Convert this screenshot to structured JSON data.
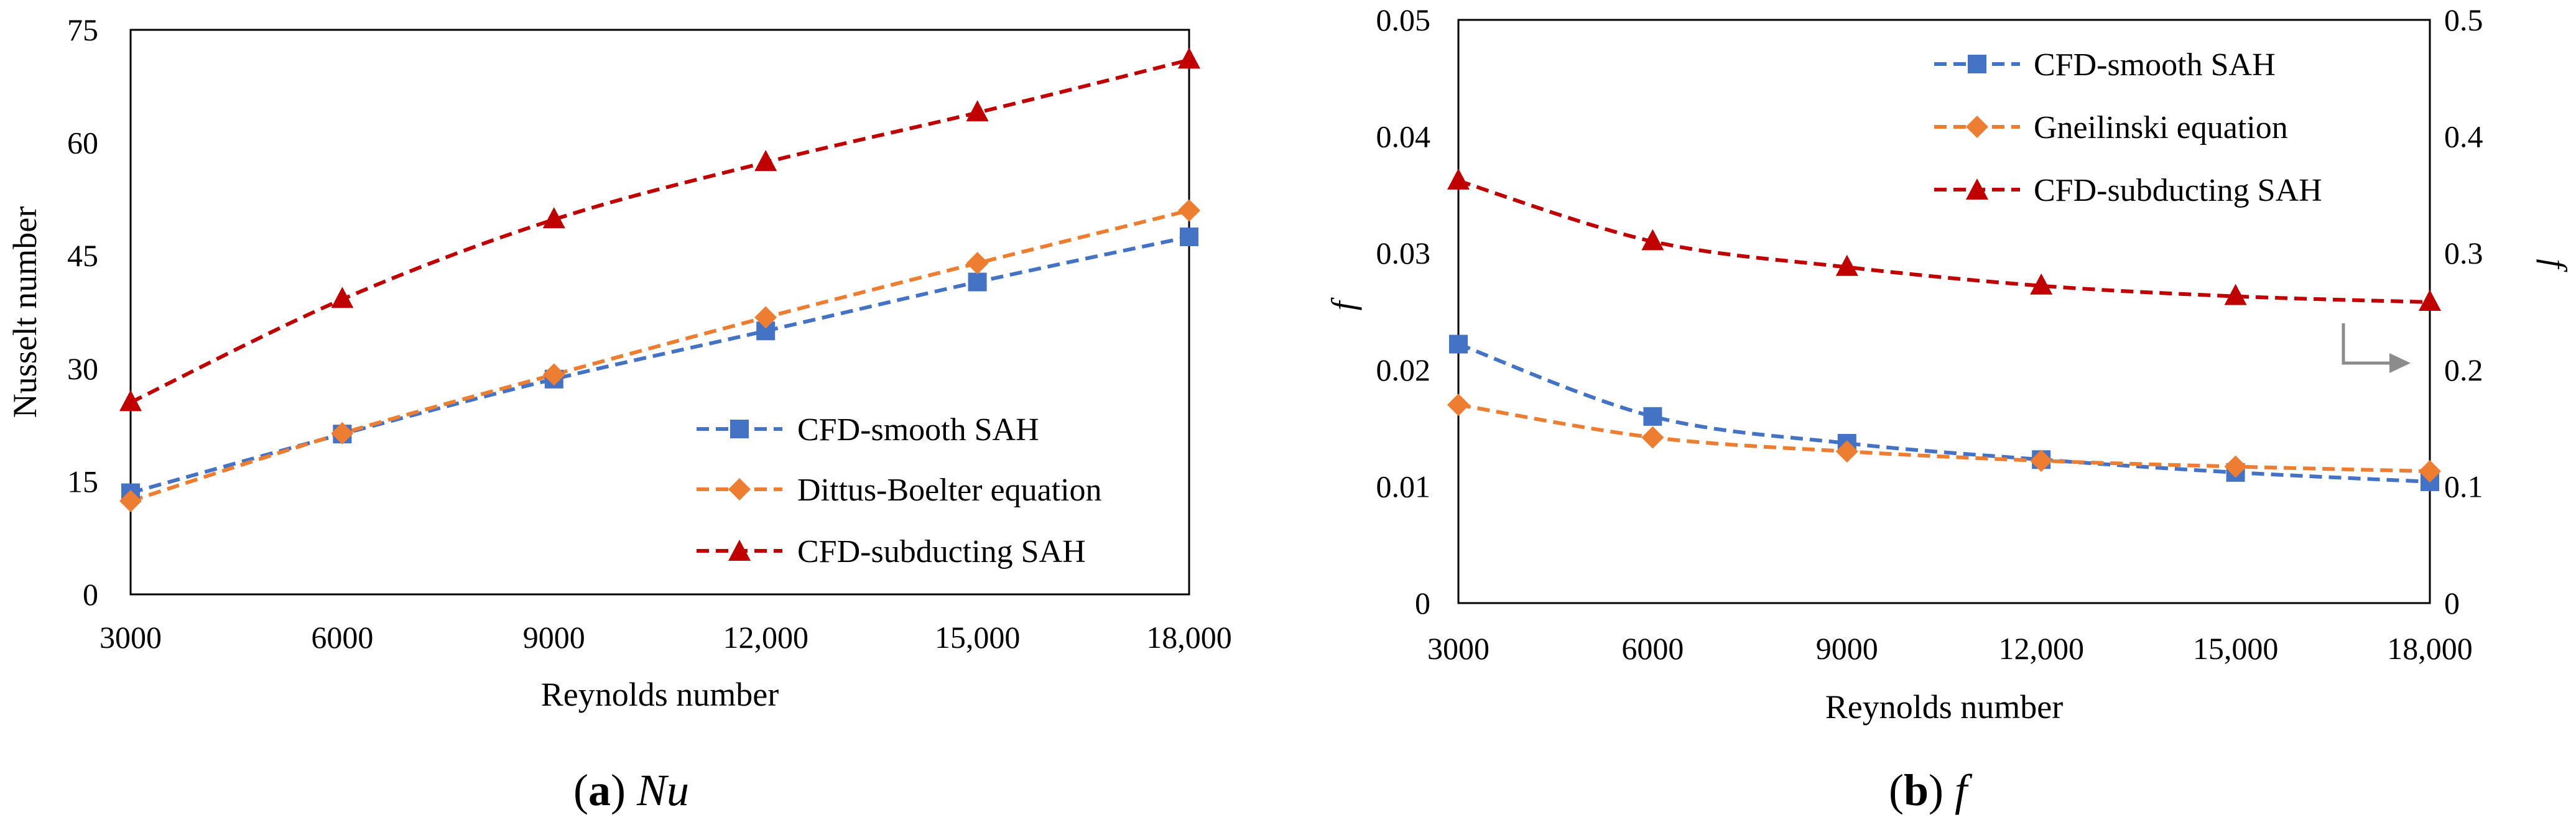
{
  "chart_data": [
    {
      "type": "line",
      "panel": "a",
      "caption_label": "a",
      "caption_var": "Nu",
      "xlabel": "Reynolds number",
      "ylabel": "Nusselt number",
      "categories": [
        "3000",
        "6000",
        "9000",
        "12,000",
        "15,000",
        "18,000"
      ],
      "x": [
        3000,
        6000,
        9000,
        12000,
        15000,
        18000
      ],
      "xlim": [
        3000,
        18000
      ],
      "ylim": [
        0,
        75
      ],
      "yticks": [
        "0",
        "15",
        "30",
        "45",
        "60",
        "75"
      ],
      "legend_position": "bottom-right",
      "series": [
        {
          "name": "CFD-smooth SAH",
          "color": "#4472C4",
          "marker": "square",
          "values": [
            13.5,
            21.3,
            28.6,
            35.0,
            41.5,
            47.5
          ]
        },
        {
          "name": "Dittus-Boelter equation",
          "color": "#ED7D31",
          "marker": "diamond",
          "values": [
            12.4,
            21.4,
            29.2,
            36.8,
            44.0,
            51.0
          ]
        },
        {
          "name": "CFD-subducting SAH",
          "color": "#C00000",
          "marker": "triangle",
          "values": [
            25.5,
            39.2,
            49.8,
            57.4,
            64.0,
            71.0
          ]
        }
      ]
    },
    {
      "type": "line",
      "panel": "b",
      "caption_label": "b",
      "caption_var": "f",
      "xlabel": "Reynolds number",
      "ylabel": "f",
      "ylabel_right": "f",
      "categories": [
        "3000",
        "6000",
        "9000",
        "12,000",
        "15,000",
        "18,000"
      ],
      "x": [
        3000,
        6000,
        9000,
        12000,
        15000,
        18000
      ],
      "xlim": [
        3000,
        18000
      ],
      "ylim": [
        0,
        0.05
      ],
      "ylim_right": [
        0,
        0.5
      ],
      "yticks": [
        "0",
        "0.01",
        "0.02",
        "0.03",
        "0.04",
        "0.05"
      ],
      "yticks_right": [
        "0",
        "0.1",
        "0.2",
        "0.3",
        "0.4",
        "0.5"
      ],
      "legend_position": "top-right",
      "series": [
        {
          "name": "CFD-smooth SAH",
          "color": "#4472C4",
          "marker": "square",
          "axis": "left",
          "values": [
            0.0222,
            0.016,
            0.0137,
            0.0123,
            0.0112,
            0.0104
          ]
        },
        {
          "name": "Gneilinski equation",
          "color": "#ED7D31",
          "marker": "diamond",
          "axis": "left",
          "values": [
            0.017,
            0.0142,
            0.013,
            0.0122,
            0.0117,
            0.0113
          ]
        },
        {
          "name": "CFD-subducting SAH",
          "color": "#C00000",
          "marker": "triangle",
          "axis": "right",
          "values": [
            0.362,
            0.31,
            0.288,
            0.272,
            0.263,
            0.258
          ]
        }
      ]
    }
  ]
}
